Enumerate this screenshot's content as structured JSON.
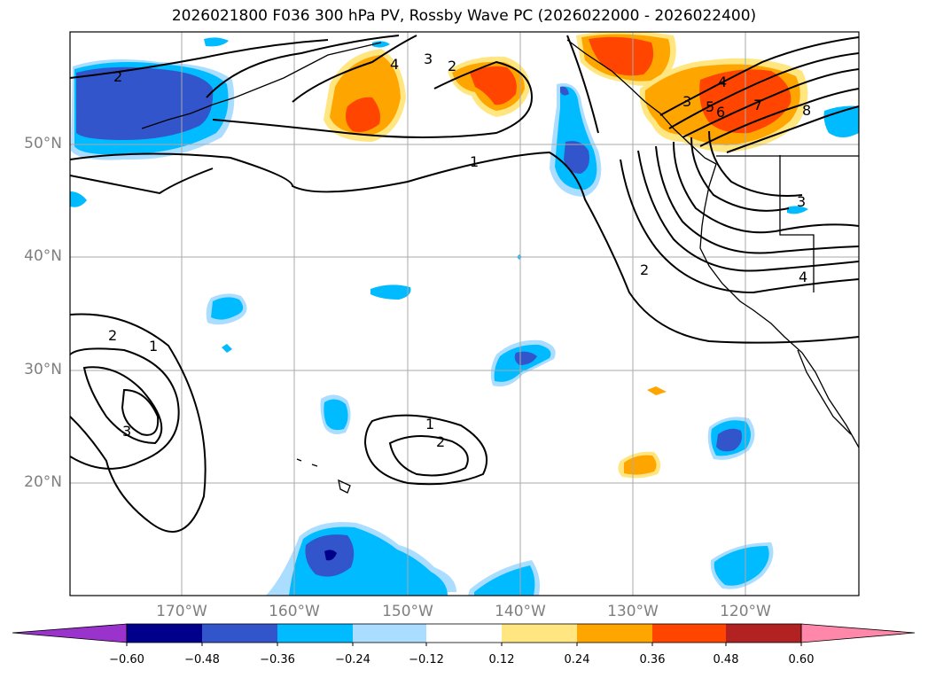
{
  "title": "2026021800 F036 300 hPa PV, Rossby Wave PC (2026022000 - 2026022400)",
  "lat_ticks": [
    "50°N",
    "40°N",
    "30°N",
    "20°N"
  ],
  "lon_ticks": [
    "170°W",
    "160°W",
    "150°W",
    "140°W",
    "130°W",
    "120°W"
  ],
  "colorbar": {
    "labels": [
      "−0.60",
      "−0.48",
      "−0.36",
      "−0.24",
      "−0.12",
      "0.12",
      "0.24",
      "0.36",
      "0.48",
      "0.60"
    ],
    "colors": [
      "#9933cc",
      "#00008b",
      "#3355cc",
      "#00bbff",
      "#aaddff",
      "#ffffff",
      "#ffe680",
      "#ffa500",
      "#ff4500",
      "#b22222",
      "#ff88aa"
    ]
  },
  "contour_labels": [
    "2",
    "4",
    "3",
    "2",
    "1",
    "4",
    "5",
    "6",
    "3",
    "7",
    "8",
    "3",
    "2",
    "4",
    "2",
    "1",
    "3",
    "1",
    "2"
  ],
  "colors": {
    "deep_blue": "#00008b",
    "blue": "#3355cc",
    "cyan": "#00bbff",
    "light_blue": "#aaddff",
    "yellow": "#ffe680",
    "orange": "#ffa500",
    "red_orange": "#ff4500",
    "grid": "#aaaaaa",
    "tick_text": "#7f7f7f"
  }
}
